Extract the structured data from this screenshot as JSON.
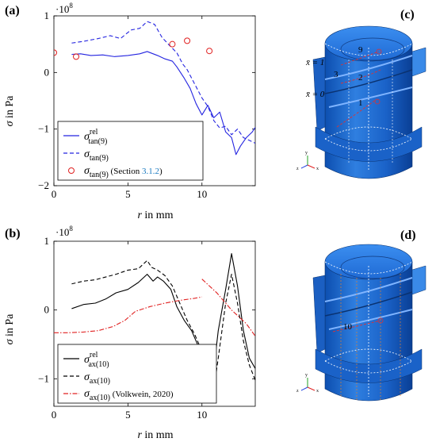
{
  "chart_data": [
    {
      "type": "line",
      "panel_label": "(a)",
      "exponent_label": "·10",
      "exponent_power": "8",
      "xlabel_var": "r",
      "xlabel_rest": " in mm",
      "ylabel_var": "σ",
      "ylabel_rest": " in Pa",
      "xlim": [
        0,
        13.6
      ],
      "ylim": [
        -2,
        1
      ],
      "xticks": [
        0,
        5,
        10
      ],
      "xtick_labels": [
        "0",
        "5",
        "10"
      ],
      "yticks": [
        -2,
        -1,
        0,
        1
      ],
      "ytick_labels": [
        "−2",
        "−1",
        "0",
        "1"
      ],
      "legend_position": "bottom-left",
      "series": [
        {
          "name": "σ_tan(9)^rel",
          "legend_base": "σ",
          "legend_sub": "tan(9)",
          "legend_sup": "rel",
          "legend_note": "",
          "legend_note_link": "",
          "style": "solid",
          "color": "#2424e0",
          "x": [
            1.2,
            1.8,
            2.5,
            3.3,
            4.1,
            5.0,
            5.8,
            6.3,
            7.0,
            7.5,
            8.0,
            8.3,
            8.8,
            9.2,
            9.6,
            10.0,
            10.4,
            10.8,
            11.2,
            11.6,
            12.0,
            12.3,
            12.6,
            13.0,
            13.4,
            13.6
          ],
          "y": [
            0.32,
            0.33,
            0.3,
            0.31,
            0.28,
            0.3,
            0.33,
            0.37,
            0.3,
            0.24,
            0.2,
            0.1,
            -0.1,
            -0.28,
            -0.55,
            -0.75,
            -0.58,
            -0.8,
            -0.7,
            -1.05,
            -1.15,
            -1.45,
            -1.3,
            -1.15,
            -1.05,
            -0.97
          ]
        },
        {
          "name": "σ_tan(9)",
          "legend_base": "σ",
          "legend_sub": "tan(9)",
          "legend_sup": "",
          "legend_note": "",
          "legend_note_link": "",
          "style": "dashed",
          "color": "#2424e0",
          "x": [
            1.2,
            2.0,
            3.0,
            3.8,
            4.5,
            5.2,
            5.8,
            6.3,
            6.8,
            7.3,
            7.8,
            8.3,
            8.7,
            9.0,
            9.5,
            10.0,
            10.4,
            10.8,
            11.2,
            11.6,
            12.0,
            12.4,
            12.8,
            13.2,
            13.6
          ],
          "y": [
            0.52,
            0.55,
            0.6,
            0.65,
            0.6,
            0.75,
            0.78,
            0.9,
            0.85,
            0.62,
            0.48,
            0.35,
            0.15,
            0.05,
            -0.2,
            -0.45,
            -0.6,
            -0.85,
            -0.98,
            -0.95,
            -1.1,
            -1.0,
            -1.15,
            -1.2,
            -1.25
          ]
        },
        {
          "name": "σ_tan(9) (Section 3.1.2)",
          "legend_base": "σ",
          "legend_sub": "tan(9)",
          "legend_sup": "",
          "legend_note": " (Section ",
          "legend_note_link": "3.1.2",
          "legend_note_end": ")",
          "style": "markers",
          "color": "#e02020",
          "x": [
            0,
            1.5,
            8.0,
            9.0,
            10.5
          ],
          "y": [
            0.35,
            0.28,
            0.5,
            0.56,
            0.38
          ]
        }
      ]
    },
    {
      "type": "line",
      "panel_label": "(b)",
      "exponent_label": "·10",
      "exponent_power": "8",
      "xlabel_var": "r",
      "xlabel_rest": " in mm",
      "ylabel_var": "σ",
      "ylabel_rest": " in Pa",
      "xlim": [
        0,
        13.6
      ],
      "ylim": [
        -1.4,
        1
      ],
      "xticks": [
        0,
        5,
        10
      ],
      "xtick_labels": [
        "0",
        "5",
        "10"
      ],
      "yticks": [
        -1,
        0,
        1
      ],
      "ytick_labels": [
        "−1",
        "0",
        "1"
      ],
      "legend_position": "bottom-left",
      "series": [
        {
          "name": "σ_ax(10)^rel",
          "legend_base": "σ",
          "legend_sub": "ax(10)",
          "legend_sup": "rel",
          "legend_note": "",
          "style": "solid",
          "color": "#000000",
          "x": [
            1.2,
            2.0,
            2.8,
            3.5,
            4.2,
            5.0,
            5.7,
            6.3,
            6.7,
            7.0,
            7.4,
            7.9,
            8.3,
            8.8,
            9.3,
            9.8,
            10.3,
            10.7,
            11.1,
            11.6,
            12.0,
            12.4,
            12.8,
            13.2,
            13.6
          ],
          "y": [
            0.02,
            0.08,
            0.1,
            0.16,
            0.25,
            0.3,
            0.4,
            0.52,
            0.42,
            0.48,
            0.42,
            0.3,
            0.05,
            -0.15,
            -0.3,
            -0.55,
            -0.75,
            -1.05,
            -0.3,
            0.3,
            0.82,
            0.35,
            -0.3,
            -0.7,
            -0.85
          ]
        },
        {
          "name": "σ_ax(10)",
          "legend_base": "σ",
          "legend_sub": "ax(10)",
          "legend_sup": "",
          "legend_note": "",
          "style": "dashed",
          "color": "#000000",
          "x": [
            1.2,
            2.0,
            2.8,
            3.5,
            4.2,
            5.0,
            5.7,
            6.3,
            6.6,
            7.0,
            7.5,
            8.0,
            8.5,
            9.0,
            9.5,
            10.0,
            10.5,
            10.7,
            11.1,
            11.6,
            12.0,
            12.4,
            12.8,
            13.2,
            13.6
          ],
          "y": [
            0.38,
            0.42,
            0.44,
            0.48,
            0.52,
            0.58,
            0.6,
            0.72,
            0.62,
            0.58,
            0.5,
            0.35,
            0.1,
            -0.15,
            -0.35,
            -0.6,
            -0.95,
            -1.3,
            -0.7,
            0.1,
            0.52,
            0.1,
            -0.45,
            -0.8,
            -1.02
          ]
        },
        {
          "name": "σ_ax(10) (Volkwein, 2020)",
          "legend_base": "σ",
          "legend_sub": "ax(10)",
          "legend_sup": "",
          "legend_note": " (Volkwein, 2020)",
          "style": "dashdot",
          "color": "#e02020",
          "x": [
            0,
            1.0,
            2.0,
            3.0,
            4.0,
            4.8,
            5.5,
            6.5,
            7.5,
            8.5,
            9.5,
            10.0
          ],
          "y": [
            -0.33,
            -0.33,
            -0.32,
            -0.3,
            -0.24,
            -0.15,
            -0.02,
            0.05,
            0.1,
            0.14,
            0.17,
            0.19
          ]
        },
        {
          "name": "σ_ax(10) (Volkwein, 2020) outer segment",
          "legend_hidden": true,
          "style": "dashdot",
          "color": "#e02020",
          "x": [
            10.0,
            11.0,
            12.0,
            13.0,
            13.6
          ],
          "y": [
            0.45,
            0.25,
            0.0,
            -0.2,
            -0.38
          ]
        }
      ]
    }
  ],
  "figures": {
    "c": {
      "panel_label": "(c)",
      "labels": [
        "9",
        "x̄ = 1",
        "3",
        "2",
        "x̄ = 0",
        "1"
      ],
      "axes_letters": [
        "y",
        "z",
        "x"
      ]
    },
    "d": {
      "panel_label": "(d)",
      "labels": [
        "10"
      ],
      "axes_letters": [
        "y",
        "z",
        "x"
      ]
    }
  }
}
